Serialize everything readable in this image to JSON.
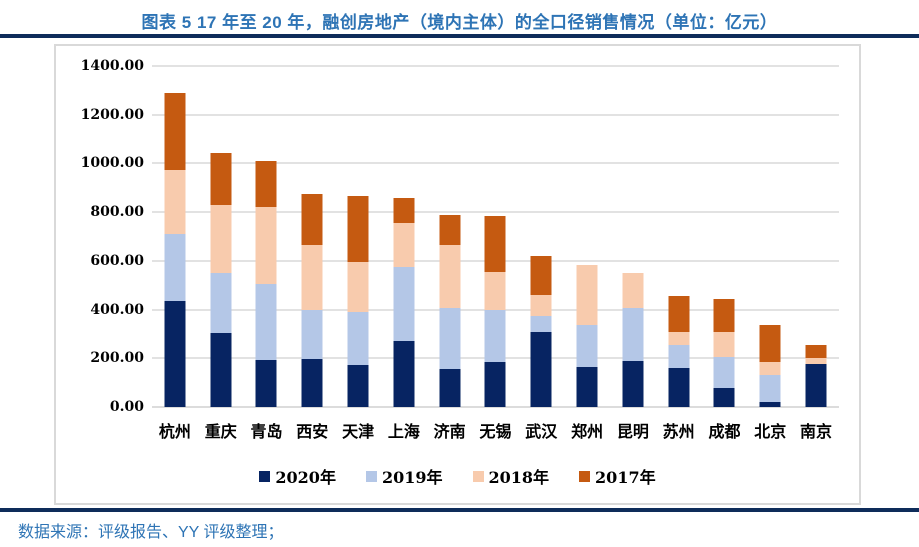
{
  "title": "图表 5 17 年至 20 年，融创房地产（境内主体）的全口径销售情况（单位：亿元）",
  "source_note": "数据来源：评级报告、YY 评级整理；",
  "colors": {
    "title_blue": "#2E74B5",
    "divider_navy": "#0E2C5A",
    "grid_gray": "#E2E2E2",
    "box_border_gray": "#D9D9D9",
    "series_2020": "#072462",
    "series_2019": "#B4C7E7",
    "series_2018": "#F8CBAD",
    "series_2017": "#C55A11"
  },
  "chart_data": {
    "type": "bar",
    "stacked": true,
    "grid": true,
    "legend_position": "bottom",
    "categories": [
      "杭州",
      "重庆",
      "青岛",
      "西安",
      "天津",
      "上海",
      "济南",
      "无锡",
      "武汉",
      "郑州",
      "昆明",
      "苏州",
      "成都",
      "北京",
      "南京"
    ],
    "series": [
      {
        "name": "2020年",
        "color": "#072462",
        "values": [
          435,
          305,
          195,
          198,
          172,
          270,
          155,
          185,
          310,
          165,
          190,
          160,
          80,
          20,
          175
        ]
      },
      {
        "name": "2019年",
        "color": "#B4C7E7",
        "values": [
          275,
          245,
          310,
          202,
          218,
          305,
          250,
          215,
          65,
          170,
          215,
          95,
          125,
          110,
          0
        ]
      },
      {
        "name": "2018年",
        "color": "#F8CBAD",
        "values": [
          265,
          280,
          315,
          265,
          205,
          180,
          260,
          155,
          85,
          250,
          145,
          55,
          105,
          55,
          25
        ]
      },
      {
        "name": "2017年",
        "color": "#C55A11",
        "values": [
          315,
          215,
          190,
          210,
          270,
          105,
          125,
          230,
          160,
          0,
          0,
          145,
          135,
          150,
          55
        ]
      }
    ],
    "totals": [
      1290,
      1045,
      1010,
      875,
      865,
      860,
      790,
      785,
      620,
      585,
      550,
      455,
      445,
      335,
      255
    ],
    "ylim": [
      0,
      1400
    ],
    "ytick_step": 200,
    "ytick_labels": [
      "0.00",
      "200.00",
      "400.00",
      "600.00",
      "800.00",
      "1000.00",
      "1200.00",
      "1400.00"
    ],
    "xlabel": "",
    "ylabel": ""
  }
}
